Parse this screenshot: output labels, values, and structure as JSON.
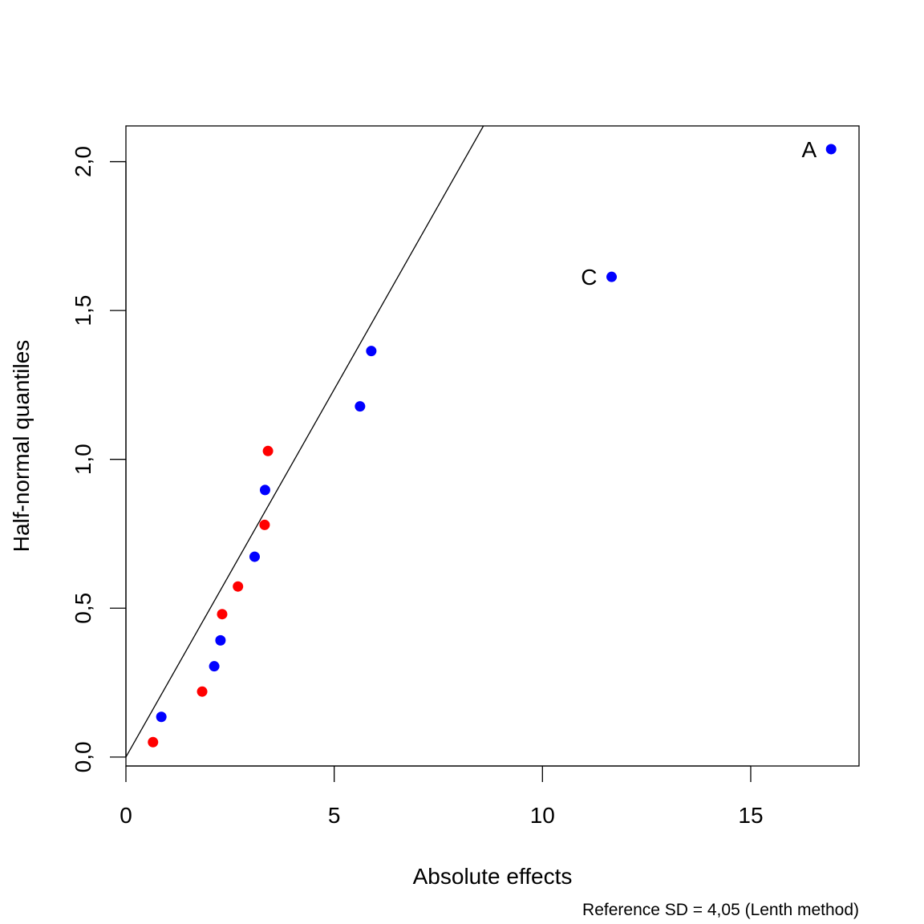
{
  "chart_data": {
    "type": "scatter",
    "title": "",
    "xlabel": "Absolute effects",
    "ylabel": "Half-normal quantiles",
    "subtitle": "Reference SD = 4,05 (Lenth method)",
    "xlim": [
      0,
      17.6
    ],
    "ylim": [
      -0.03,
      2.12
    ],
    "x_ticks": [
      0,
      5,
      10,
      15
    ],
    "x_tick_labels": [
      "0",
      "5",
      "10",
      "15"
    ],
    "y_ticks": [
      0.0,
      0.5,
      1.0,
      1.5,
      2.0
    ],
    "y_tick_labels": [
      "0,0",
      "0,5",
      "1,0",
      "1,5",
      "2,0"
    ],
    "grid": false,
    "reference_line": {
      "slope": 0.247,
      "intercept": 0
    },
    "colors": {
      "blue": "#0000ff",
      "red": "#ff0000",
      "line": "#000000"
    },
    "points": [
      {
        "x": 0.65,
        "y": 0.05,
        "color": "red"
      },
      {
        "x": 0.85,
        "y": 0.135,
        "color": "blue"
      },
      {
        "x": 1.83,
        "y": 0.22,
        "color": "red"
      },
      {
        "x": 2.12,
        "y": 0.305,
        "color": "blue"
      },
      {
        "x": 2.27,
        "y": 0.392,
        "color": "blue"
      },
      {
        "x": 2.31,
        "y": 0.48,
        "color": "red"
      },
      {
        "x": 2.69,
        "y": 0.573,
        "color": "red"
      },
      {
        "x": 3.09,
        "y": 0.673,
        "color": "blue"
      },
      {
        "x": 3.33,
        "y": 0.78,
        "color": "red"
      },
      {
        "x": 3.34,
        "y": 0.897,
        "color": "blue"
      },
      {
        "x": 3.41,
        "y": 1.028,
        "color": "red"
      },
      {
        "x": 5.62,
        "y": 1.178,
        "color": "blue"
      },
      {
        "x": 5.89,
        "y": 1.364,
        "color": "blue"
      },
      {
        "x": 11.66,
        "y": 1.613,
        "color": "blue",
        "label": "C"
      },
      {
        "x": 16.93,
        "y": 2.042,
        "color": "blue",
        "label": "A"
      }
    ]
  }
}
